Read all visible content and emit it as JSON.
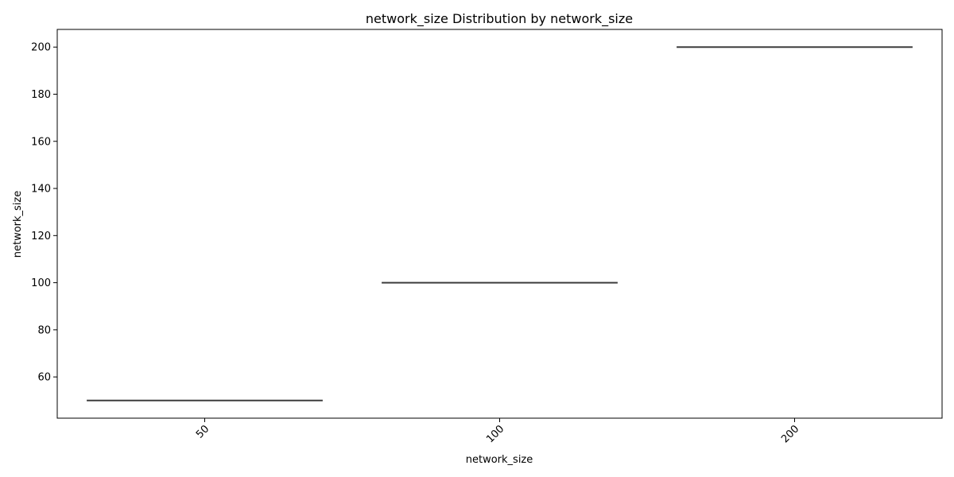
{
  "chart_data": {
    "type": "box",
    "title": "network_size Distribution by network_size",
    "xlabel": "network_size",
    "ylabel": "network_size",
    "categories": [
      "50",
      "100",
      "200"
    ],
    "values": [
      50,
      100,
      200
    ],
    "ylim": [
      42.5,
      207.5
    ],
    "yticks": [
      "60",
      "80",
      "100",
      "120",
      "140",
      "160",
      "180",
      "200"
    ],
    "grid": false,
    "colors": {
      "box_line": "#3d3d3d",
      "axis": "#000000",
      "background": "#ffffff"
    }
  }
}
